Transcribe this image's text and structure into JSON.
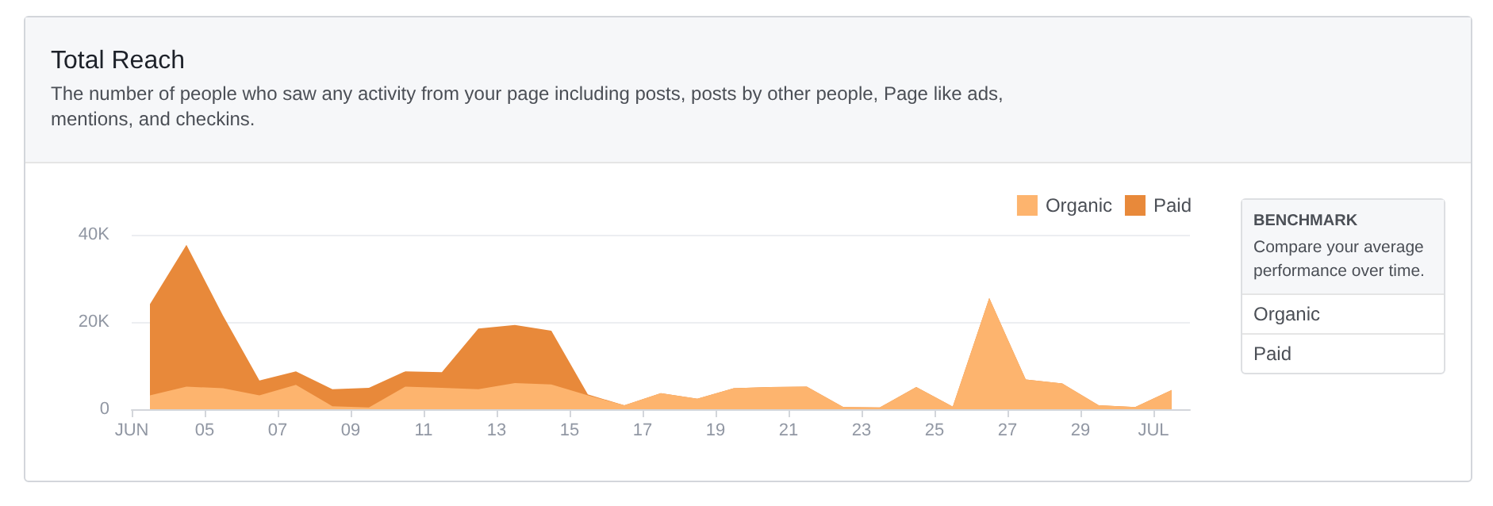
{
  "chart_data": {
    "type": "area",
    "stacked": true,
    "title": "Total Reach",
    "subtitle": "The number of people who saw any activity from your page including posts, posts by other people, Page like ads, mentions, and checkins.",
    "x": [
      3.5,
      4.5,
      5.5,
      6.5,
      7.5,
      8.5,
      9.5,
      10.5,
      11.5,
      12.5,
      13.5,
      14.5,
      15.5,
      16.5,
      17.5,
      18.5,
      19.5,
      20.5,
      21.5,
      22.5,
      23.5,
      24.5,
      25.5,
      26.5,
      27.5,
      28.5,
      29.5,
      30.5,
      31.5
    ],
    "series": [
      {
        "name": "Organic",
        "color": "#fdb46e",
        "values": [
          3200,
          5200,
          4800,
          3200,
          5600,
          700,
          400,
          5200,
          4900,
          4600,
          6000,
          5700,
          3200,
          900,
          3700,
          2400,
          4800,
          5100,
          5200,
          500,
          400,
          5100,
          600,
          25500,
          6800,
          5900,
          900,
          500,
          4400
        ]
      },
      {
        "name": "Paid",
        "color": "#e8893a",
        "values": [
          20900,
          32500,
          16700,
          3400,
          3100,
          3900,
          4500,
          3500,
          3600,
          13900,
          13300,
          12300,
          200,
          0,
          0,
          0,
          0,
          0,
          0,
          0,
          0,
          0,
          0,
          0,
          0,
          0,
          0,
          0,
          0
        ]
      }
    ],
    "xlim": [
      3,
      32
    ],
    "xticks": [
      {
        "value": 3,
        "label": "JUN"
      },
      {
        "value": 5,
        "label": "05"
      },
      {
        "value": 7,
        "label": "07"
      },
      {
        "value": 9,
        "label": "09"
      },
      {
        "value": 11,
        "label": "11"
      },
      {
        "value": 13,
        "label": "13"
      },
      {
        "value": 15,
        "label": "15"
      },
      {
        "value": 17,
        "label": "17"
      },
      {
        "value": 19,
        "label": "19"
      },
      {
        "value": 21,
        "label": "21"
      },
      {
        "value": 23,
        "label": "23"
      },
      {
        "value": 25,
        "label": "25"
      },
      {
        "value": 27,
        "label": "27"
      },
      {
        "value": 29,
        "label": "29"
      },
      {
        "value": 31,
        "label": "JUL"
      }
    ],
    "ylim": [
      0,
      40000
    ],
    "yticks": [
      0,
      {
        "value": 20000,
        "label": "20K"
      },
      {
        "value": 40000,
        "label": "40K"
      }
    ],
    "grid": "y",
    "legend": "top right",
    "annotations": [
      "BENCHMARK",
      "Compare your average performance over time.",
      "Organic",
      "Paid"
    ]
  }
}
